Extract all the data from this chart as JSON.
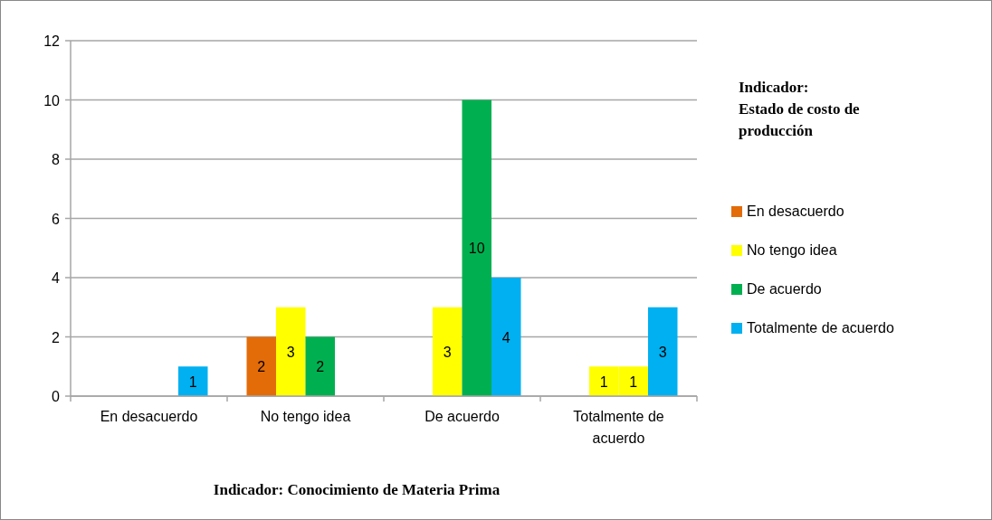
{
  "chart_data": {
    "type": "bar",
    "xlabel": "Indicador: Conocimiento de Materia Prima",
    "legend_title": "Indicador:\nEstado de costo de producción",
    "categories": [
      "En desacuerdo",
      "No tengo idea",
      "De acuerdo",
      "Totalmente de acuerdo"
    ],
    "series": [
      {
        "name": "En desacuerdo",
        "color": "#e36c09",
        "values": [
          null,
          2,
          null,
          null
        ]
      },
      {
        "name": "No tengo idea",
        "color": "#ffff00",
        "values": [
          null,
          3,
          3,
          1
        ]
      },
      {
        "name": "De acuerdo",
        "color": "#00b050",
        "values": [
          null,
          2,
          10,
          1
        ],
        "colors": [
          null,
          "#00b050",
          "#00b050",
          "#ffff00"
        ]
      },
      {
        "name": "Totalmente de acuerdo",
        "color": "#00b0f0",
        "values": [
          1,
          null,
          4,
          3
        ]
      }
    ],
    "ylim": [
      0,
      12
    ],
    "yticks": [
      0,
      2,
      4,
      6,
      8,
      10,
      12
    ],
    "grid": "y",
    "legend": "right",
    "data_labels": true
  }
}
